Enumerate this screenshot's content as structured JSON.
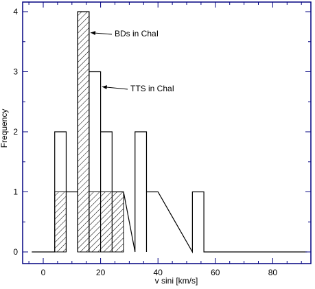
{
  "chart_data": {
    "type": "histogram",
    "xlabel": "v sini [km/s]",
    "ylabel": "Frequency",
    "xlim": [
      -5,
      93
    ],
    "ylim": [
      -0.2,
      4.1
    ],
    "bin_width": 4,
    "x_ticks": [
      0,
      20,
      40,
      60,
      80
    ],
    "y_ticks": [
      0,
      1,
      2,
      3,
      4
    ],
    "series": [
      {
        "name": "TTS in ChaI",
        "style": "outline",
        "bins": [
          {
            "x0": 4,
            "x1": 8,
            "count": 2
          },
          {
            "x0": 8,
            "x1": 12,
            "count": 1
          },
          {
            "x0": 12,
            "x1": 16,
            "count": 4
          },
          {
            "x0": 16,
            "x1": 20,
            "count": 3
          },
          {
            "x0": 20,
            "x1": 24,
            "count": 2
          },
          {
            "x0": 24,
            "x1": 28,
            "count": 1
          },
          {
            "x0": 32,
            "x1": 36,
            "count": 2
          },
          {
            "x0": 36,
            "x1": 40,
            "count": 1
          },
          {
            "x0": 52,
            "x1": 56,
            "count": 1
          }
        ],
        "baseline": [
          -4,
          92
        ]
      },
      {
        "name": "BDs in ChaI",
        "style": "hatched",
        "bins": [
          {
            "x0": 4,
            "x1": 8,
            "count": 1
          },
          {
            "x0": 12,
            "x1": 16,
            "count": 4
          },
          {
            "x0": 16,
            "x1": 28,
            "count": 1
          }
        ]
      }
    ],
    "annotations": [
      {
        "text": "BDs in ChaI",
        "arrow_to": {
          "x": 16.5,
          "y": 3.65
        }
      },
      {
        "text": "TTS in ChaI",
        "arrow_to": {
          "x": 20.5,
          "y": 2.75
        }
      }
    ],
    "colors": {
      "axis": "#000080",
      "line": "#000000"
    }
  }
}
